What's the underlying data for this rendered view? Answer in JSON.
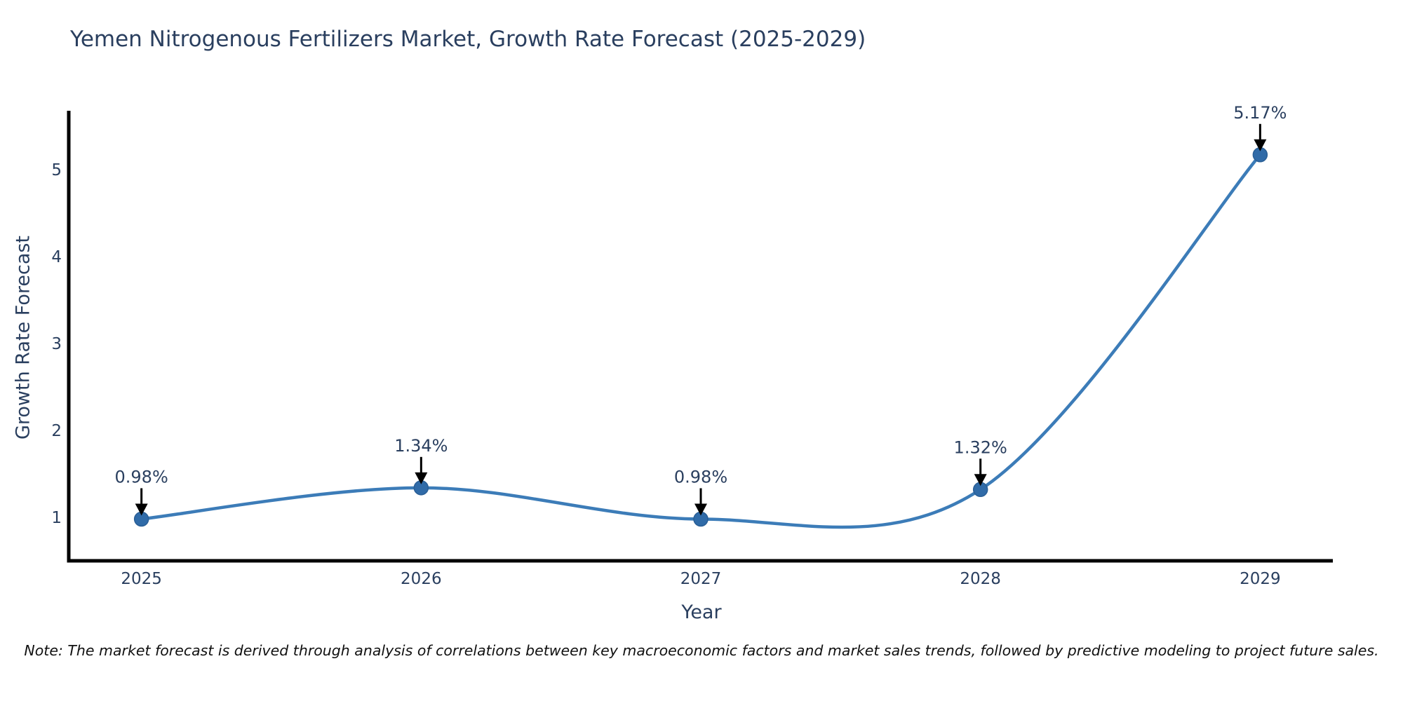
{
  "note": "Note: The market forecast is derived through analysis of correlations between key macroeconomic factors and market sales trends, followed by predictive modeling to project future sales.",
  "chart_data": {
    "type": "line",
    "title": "Yemen Nitrogenous Fertilizers Market, Growth Rate Forecast (2025-2029)",
    "xlabel": "Year",
    "ylabel": "Growth Rate Forecast",
    "x": [
      2025,
      2026,
      2027,
      2028,
      2029
    ],
    "series": [
      {
        "name": "Growth Rate Forecast",
        "values": [
          0.98,
          1.34,
          0.98,
          1.32,
          5.17
        ]
      }
    ],
    "point_labels": [
      "0.98%",
      "1.34%",
      "0.98%",
      "1.32%",
      "5.17%"
    ],
    "yticks": [
      1,
      2,
      3,
      4,
      5
    ],
    "xtick_labels": [
      "2025",
      "2026",
      "2027",
      "2028",
      "2029"
    ],
    "xlim": [
      2024.74,
      2029.26
    ],
    "ylim": [
      0.5,
      5.66
    ],
    "line_shape": "spline",
    "grid": false,
    "legend": null,
    "annotations_have_arrows": true,
    "colors": {
      "line": "#3c7cb8",
      "marker": "#306ba8",
      "marker_edge": "#2a5f96",
      "axis": "#000000",
      "tick_text": "#2a3f5f",
      "annotation_text": "#2a3f5f",
      "arrow": "#000000",
      "background": "#ffffff"
    }
  }
}
